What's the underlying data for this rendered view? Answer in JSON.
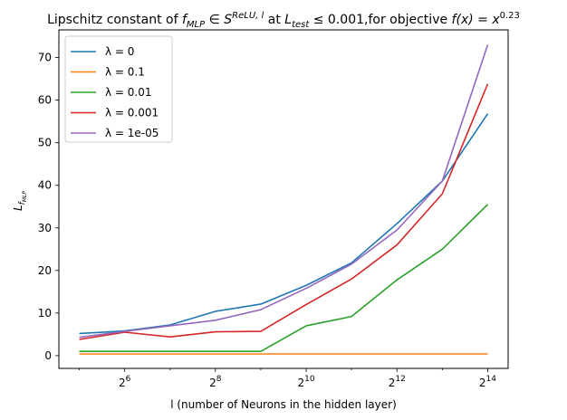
{
  "chart_data": {
    "type": "line",
    "title_parts": {
      "prefix": "Lipschitz constant of ",
      "f": "f",
      "f_sub": "MLP",
      "in": " ∈ ",
      "space": "S",
      "space_sup": "ReLU, l",
      "mid": " at ",
      "L": "L",
      "L_sub": "test",
      "cond": " ≤ 0.001,for objective ",
      "objective": "f(x) = x",
      "exponent": "0.23"
    },
    "xlabel": "l (number of Neurons in the hidden layer)",
    "ylabel": {
      "main": "L",
      "sub": "f",
      "subsub": "MLP"
    },
    "x_scale": "log2",
    "x_ticks": [
      {
        "exp": 6,
        "base": "2",
        "power": "6"
      },
      {
        "exp": 8,
        "base": "2",
        "power": "8"
      },
      {
        "exp": 10,
        "base": "2",
        "power": "10"
      },
      {
        "exp": 12,
        "base": "2",
        "power": "12"
      },
      {
        "exp": 14,
        "base": "2",
        "power": "14"
      }
    ],
    "y_ticks": [
      0,
      10,
      20,
      30,
      40,
      50,
      60,
      70
    ],
    "xlim": [
      32,
      16384
    ],
    "ylim": [
      -3,
      76.5
    ],
    "x": [
      32,
      64,
      128,
      256,
      512,
      1024,
      2048,
      4096,
      8192,
      16384
    ],
    "legend": "top-left",
    "grid": false,
    "series": [
      {
        "name": "λ = 0",
        "color": "#1f77b4",
        "values": [
          5.2,
          5.8,
          7.2,
          10.4,
          12.1,
          16.5,
          21.8,
          31.0,
          41.0,
          56.8
        ]
      },
      {
        "name": "λ = 0.1",
        "color": "#ff7f0e",
        "values": [
          0.4,
          0.4,
          0.4,
          0.4,
          0.4,
          0.4,
          0.4,
          0.4,
          0.4,
          0.4
        ]
      },
      {
        "name": "λ = 0.01",
        "color": "#2ca02c",
        "values": [
          1.0,
          1.0,
          1.0,
          1.0,
          1.0,
          7.0,
          9.2,
          17.8,
          25.0,
          35.5
        ]
      },
      {
        "name": "λ = 0.001",
        "color": "#d62728",
        "values": [
          3.8,
          5.5,
          4.4,
          5.6,
          5.7,
          12.0,
          18.0,
          26.0,
          38.0,
          63.8
        ]
      },
      {
        "name": "λ = 1e-05",
        "color": "#9467bd",
        "values": [
          4.3,
          5.7,
          7.0,
          8.3,
          10.8,
          15.8,
          21.5,
          29.5,
          41.0,
          73.0
        ]
      }
    ]
  }
}
